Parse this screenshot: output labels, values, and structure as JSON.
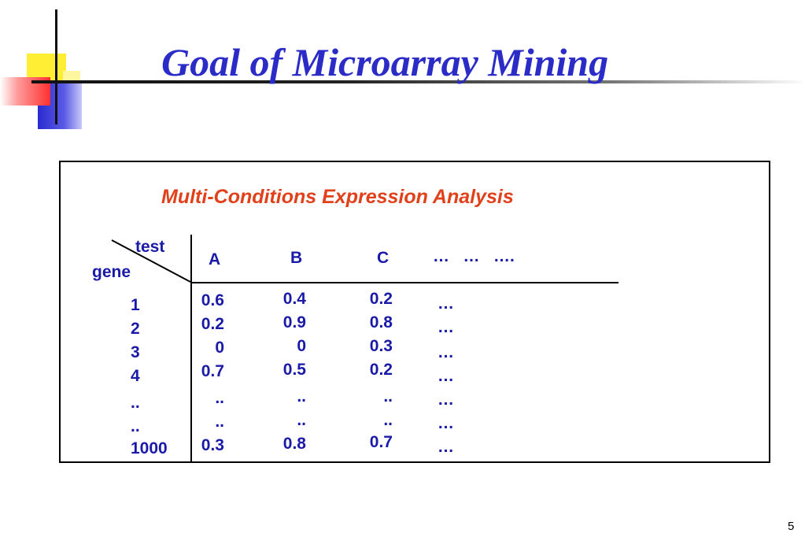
{
  "slide": {
    "title": "Goal of Microarray Mining",
    "subtitle": "Multi-Conditions Expression Analysis",
    "page_number": "5"
  },
  "table": {
    "header_test": "test",
    "header_gene": "gene",
    "columns": [
      "A",
      "B",
      "C",
      "…   …   …."
    ],
    "genes": [
      "1",
      "2",
      "3",
      "4",
      "..",
      "..",
      "1000"
    ],
    "col_a": [
      "0.6",
      "0.2",
      "0",
      "0.7",
      "..",
      "..",
      "0.3"
    ],
    "col_b": [
      "0.4",
      "0.9",
      "0",
      "0.5",
      "..",
      "..",
      "0.8"
    ],
    "col_c": [
      "0.2",
      "0.8",
      "0.3",
      "0.2",
      "..",
      "..",
      "0.7"
    ],
    "col_more": [
      "…",
      "…",
      "…",
      "…",
      "…",
      "…",
      "…"
    ]
  }
}
